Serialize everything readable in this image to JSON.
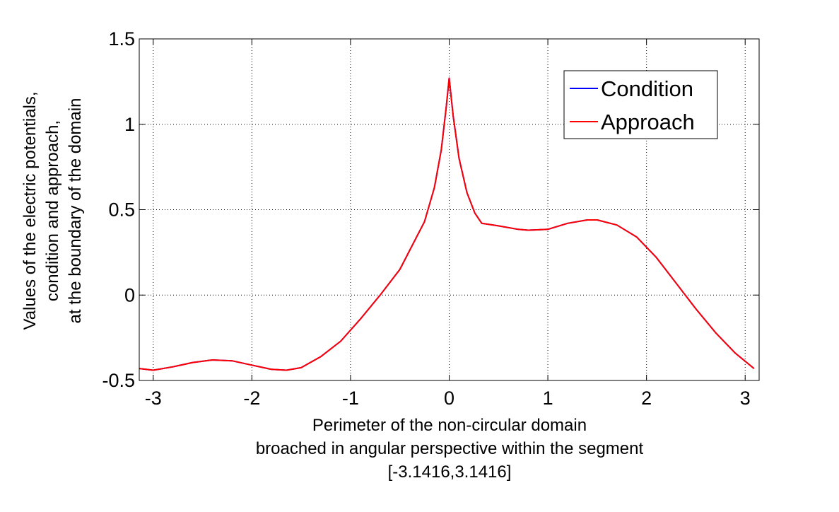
{
  "chart_data": {
    "type": "line",
    "xlabel_lines": [
      "Perimeter of the non-circular domain",
      "broached in angular perspective within the segment",
      "[-3.1416,3.1416]"
    ],
    "ylabel_lines": [
      "Values of the electric potentials,",
      "condition and approach,",
      "at the boundary of the domain"
    ],
    "xlim": [
      -3.1416,
      3.1416
    ],
    "ylim": [
      -0.5,
      1.5
    ],
    "x_ticks": [
      -3,
      -2,
      -1,
      0,
      1,
      2,
      3
    ],
    "x_tick_labels": [
      "-3",
      "-2",
      "-1",
      "0",
      "1",
      "2",
      "3"
    ],
    "y_ticks": [
      -0.5,
      0,
      0.5,
      1,
      1.5
    ],
    "y_tick_labels": [
      "-0.5",
      "0",
      "0.5",
      "1",
      "1.5"
    ],
    "grid": true,
    "legend_position": "top-right",
    "colors": {
      "condition": "#0000ff",
      "approach": "#ff0000"
    },
    "x": [
      -3.14,
      -3.0,
      -2.8,
      -2.6,
      -2.4,
      -2.2,
      -2.0,
      -1.8,
      -1.65,
      -1.5,
      -1.3,
      -1.1,
      -0.9,
      -0.7,
      -0.5,
      -0.33,
      -0.25,
      -0.15,
      -0.08,
      -0.03,
      0.0,
      0.04,
      0.1,
      0.18,
      0.26,
      0.33,
      0.5,
      0.7,
      0.8,
      1.0,
      1.2,
      1.4,
      1.5,
      1.7,
      1.9,
      2.1,
      2.3,
      2.5,
      2.7,
      2.9,
      3.09
    ],
    "series": [
      {
        "name": "Condition",
        "values": [
          -0.43,
          -0.44,
          -0.42,
          -0.395,
          -0.38,
          -0.385,
          -0.41,
          -0.435,
          -0.44,
          -0.425,
          -0.36,
          -0.27,
          -0.14,
          0.0,
          0.15,
          0.34,
          0.43,
          0.63,
          0.85,
          1.1,
          1.27,
          1.05,
          0.8,
          0.6,
          0.48,
          0.42,
          0.405,
          0.385,
          0.38,
          0.385,
          0.42,
          0.44,
          0.44,
          0.41,
          0.34,
          0.22,
          0.07,
          -0.08,
          -0.22,
          -0.34,
          -0.43
        ]
      },
      {
        "name": "Approach",
        "values": [
          -0.43,
          -0.44,
          -0.42,
          -0.395,
          -0.38,
          -0.385,
          -0.41,
          -0.435,
          -0.44,
          -0.425,
          -0.36,
          -0.27,
          -0.14,
          0.0,
          0.15,
          0.34,
          0.43,
          0.63,
          0.85,
          1.1,
          1.27,
          1.05,
          0.8,
          0.6,
          0.48,
          0.42,
          0.405,
          0.385,
          0.38,
          0.385,
          0.42,
          0.44,
          0.44,
          0.41,
          0.34,
          0.22,
          0.07,
          -0.08,
          -0.22,
          -0.34,
          -0.43
        ]
      }
    ]
  }
}
